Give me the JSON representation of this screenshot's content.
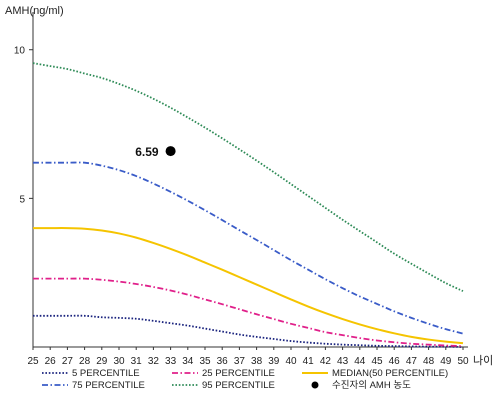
{
  "chart_data": {
    "type": "line",
    "ylabel": "AMH(ng/ml)",
    "xlabel": "나이",
    "xlim": [
      25,
      50
    ],
    "ylim": [
      0,
      11
    ],
    "yticks": [
      5,
      10
    ],
    "x": [
      25,
      26,
      27,
      28,
      29,
      30,
      31,
      32,
      33,
      34,
      35,
      36,
      37,
      38,
      39,
      40,
      41,
      42,
      43,
      44,
      45,
      46,
      47,
      48,
      49,
      50
    ],
    "x_tick_labels": [
      "25",
      "26",
      "27",
      "28",
      "29",
      "30",
      "31",
      "32",
      "33",
      "34",
      "35",
      "36",
      "37",
      "38",
      "39",
      "40",
      "41",
      "42",
      "43",
      "44",
      "45",
      "46",
      "47",
      "48",
      "49",
      "50"
    ],
    "grid": false,
    "legend_position": "bottom",
    "series": [
      {
        "name": "5 PERCENTILE",
        "color": "#1a237e",
        "style": "dotted",
        "values": [
          1.05,
          1.05,
          1.05,
          1.05,
          1.0,
          0.98,
          0.95,
          0.88,
          0.8,
          0.72,
          0.62,
          0.52,
          0.42,
          0.34,
          0.27,
          0.2,
          0.15,
          0.11,
          0.08,
          0.06,
          0.04,
          0.03,
          0.02,
          0.01,
          0.01,
          0.0
        ]
      },
      {
        "name": "25 PERCENTILE",
        "color": "#e0208a",
        "style": "dash-dot",
        "values": [
          2.3,
          2.3,
          2.3,
          2.3,
          2.26,
          2.2,
          2.12,
          2.02,
          1.9,
          1.76,
          1.6,
          1.44,
          1.27,
          1.1,
          0.94,
          0.78,
          0.64,
          0.5,
          0.4,
          0.3,
          0.22,
          0.16,
          0.11,
          0.08,
          0.05,
          0.03
        ]
      },
      {
        "name": "MEDIAN(50 PERCENTILE)",
        "color": "#f5c400",
        "style": "solid",
        "values": [
          4.0,
          4.0,
          4.0,
          3.98,
          3.92,
          3.82,
          3.68,
          3.5,
          3.3,
          3.08,
          2.84,
          2.6,
          2.35,
          2.1,
          1.85,
          1.6,
          1.36,
          1.14,
          0.94,
          0.76,
          0.6,
          0.46,
          0.34,
          0.25,
          0.18,
          0.13
        ]
      },
      {
        "name": "75 PERCENTILE",
        "color": "#3a5cc8",
        "style": "dash-dot",
        "values": [
          6.2,
          6.2,
          6.2,
          6.2,
          6.1,
          5.95,
          5.75,
          5.5,
          5.22,
          4.92,
          4.6,
          4.27,
          3.93,
          3.6,
          3.26,
          2.92,
          2.6,
          2.28,
          1.98,
          1.7,
          1.45,
          1.2,
          0.98,
          0.78,
          0.6,
          0.45
        ]
      },
      {
        "name": "95 PERCENTILE",
        "color": "#2e8b57",
        "style": "dotted",
        "values": [
          9.55,
          9.45,
          9.35,
          9.2,
          9.05,
          8.85,
          8.62,
          8.35,
          8.05,
          7.72,
          7.38,
          7.02,
          6.65,
          6.27,
          5.88,
          5.48,
          5.08,
          4.68,
          4.28,
          3.9,
          3.52,
          3.14,
          2.8,
          2.47,
          2.15,
          1.88
        ]
      }
    ],
    "points": [
      {
        "name": "수진자의 AMH 농도",
        "x": 33,
        "y": 6.59,
        "label": "6.59",
        "color": "#000000"
      }
    ]
  }
}
